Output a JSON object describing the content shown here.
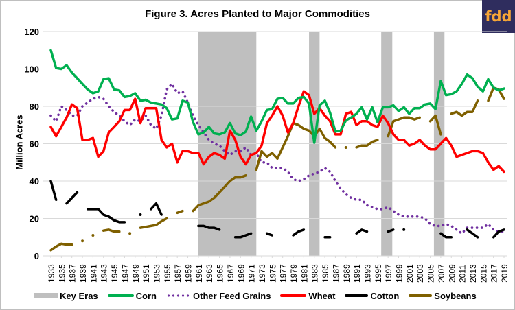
{
  "logo": {
    "text": "fdd"
  },
  "chart_data": {
    "type": "line",
    "title": "Figure 3. Acres Planted to Major Commodities",
    "xlabel": "",
    "ylabel": "Million Acres",
    "ylim": [
      0,
      120
    ],
    "yticks": [
      0,
      20,
      40,
      60,
      80,
      100,
      120
    ],
    "xlim": [
      1933,
      2019
    ],
    "xtick_labels": [
      "1933",
      "1935",
      "1937",
      "1939",
      "1941",
      "1943",
      "1945",
      "1947",
      "1949",
      "1951",
      "1953",
      "1955",
      "1957",
      "1959",
      "1961",
      "1963",
      "1965",
      "1967",
      "1969",
      "1971",
      "1973",
      "1975",
      "1977",
      "1979",
      "1981",
      "1983",
      "1985",
      "1987",
      "1989",
      "1991",
      "1993",
      "1995",
      "1997",
      "1999",
      "2001",
      "2003",
      "2005",
      "2007",
      "2009",
      "2011",
      "2013",
      "2015",
      "2017",
      "2019"
    ],
    "grid": "horizontal",
    "legend_position": "bottom",
    "key_eras": [
      {
        "start": 1961,
        "end": 1972
      },
      {
        "start": 1982,
        "end": 1984
      },
      {
        "start": 1995.7,
        "end": 1997.8
      },
      {
        "start": 2005.7,
        "end": 2007.7
      }
    ],
    "legend": [
      {
        "name": "Key Eras",
        "color": "#bfbfbf",
        "style": "band"
      },
      {
        "name": "Corn",
        "color": "#00b050",
        "style": "solid"
      },
      {
        "name": "Other Feed Grains",
        "color": "#7030a0",
        "style": "dotted"
      },
      {
        "name": "Wheat",
        "color": "#ff0000",
        "style": "solid"
      },
      {
        "name": "Cotton",
        "color": "#000000",
        "style": "dash"
      },
      {
        "name": "Soybeans",
        "color": "#7f6000",
        "style": "dashdot"
      }
    ],
    "x": [
      1933,
      1934,
      1935,
      1936,
      1937,
      1938,
      1939,
      1940,
      1941,
      1942,
      1943,
      1944,
      1945,
      1946,
      1947,
      1948,
      1949,
      1950,
      1951,
      1952,
      1953,
      1954,
      1955,
      1956,
      1957,
      1958,
      1959,
      1960,
      1961,
      1962,
      1963,
      1964,
      1965,
      1966,
      1967,
      1968,
      1969,
      1970,
      1971,
      1972,
      1973,
      1974,
      1975,
      1976,
      1977,
      1978,
      1979,
      1980,
      1981,
      1982,
      1983,
      1984,
      1985,
      1986,
      1987,
      1988,
      1989,
      1990,
      1991,
      1992,
      1993,
      1994,
      1995,
      1996,
      1997,
      1998,
      1999,
      2000,
      2001,
      2002,
      2003,
      2004,
      2005,
      2006,
      2007,
      2008,
      2009,
      2010,
      2011,
      2012,
      2013,
      2014,
      2015,
      2016,
      2017,
      2018,
      2019
    ],
    "series": [
      {
        "name": "Corn",
        "values": [
          110,
          100.5,
          100,
          102,
          98,
          95,
          92,
          89,
          87,
          88,
          94.5,
          95,
          89,
          88.5,
          85,
          85.5,
          87,
          83,
          83.5,
          82,
          81.5,
          81,
          79,
          73,
          73.5,
          83,
          82,
          71.5,
          65,
          66,
          69,
          65.5,
          65,
          66,
          71,
          65.5,
          64.5,
          66.5,
          74.5,
          67,
          72,
          78,
          78.5,
          84,
          84.5,
          81.5,
          81.5,
          84.5,
          85,
          81.5,
          60.5,
          80.5,
          83,
          76.5,
          66.5,
          67,
          72.5,
          74,
          76,
          79.5,
          73,
          79.5,
          71.5,
          79.5,
          79.5,
          80.5,
          77.5,
          79.5,
          76,
          79,
          79,
          81,
          81.5,
          78.5,
          93.5,
          86,
          86.5,
          88,
          92,
          97,
          95,
          90.5,
          88,
          94.5,
          90,
          88.5,
          89.5
        ]
      },
      {
        "name": "Other Feed Grains",
        "values": [
          75,
          72,
          80,
          78,
          75,
          75,
          80,
          82,
          84,
          85,
          84,
          80,
          77,
          75,
          72,
          70,
          73,
          72,
          75,
          70,
          68,
          75,
          89,
          92,
          87,
          88,
          82,
          75,
          70,
          66,
          62,
          60,
          59,
          56,
          54,
          56,
          56,
          58,
          54,
          55,
          50,
          50,
          47,
          47,
          47,
          45,
          41,
          40,
          41,
          43,
          44,
          45,
          47,
          45,
          40,
          36,
          33,
          31,
          30,
          30,
          27,
          26,
          25,
          25,
          26,
          24,
          22,
          21,
          21,
          21,
          21,
          20,
          17,
          16,
          16,
          17,
          16,
          14,
          12,
          15,
          15,
          15,
          15,
          17,
          14,
          13,
          13
        ]
      },
      {
        "name": "Wheat",
        "values": [
          69,
          64,
          69,
          74,
          81,
          79,
          62,
          62,
          63,
          53,
          56,
          66,
          69,
          72,
          78,
          78,
          84,
          71,
          79,
          79,
          79,
          62,
          58,
          60,
          50,
          56,
          56,
          55,
          55,
          49,
          53,
          55,
          54,
          52,
          67,
          62,
          53,
          49,
          54,
          55,
          59,
          71,
          75,
          80,
          75,
          66,
          71,
          80,
          88,
          86,
          76,
          79,
          75,
          72,
          65,
          65,
          76,
          77,
          70,
          72,
          72,
          70,
          69,
          75,
          71,
          65,
          62,
          62,
          59,
          60,
          62,
          59,
          57,
          57,
          60,
          63,
          59,
          53,
          54,
          55,
          56,
          56,
          55,
          50,
          46,
          48,
          45
        ]
      },
      {
        "name": "Cotton",
        "values": [
          40,
          30,
          null,
          28,
          31,
          34,
          null,
          25,
          25,
          25,
          22,
          21,
          19,
          18,
          18,
          null,
          null,
          22,
          null,
          25,
          28,
          22,
          null,
          null,
          null,
          null,
          null,
          null,
          16,
          16,
          15,
          15,
          14,
          null,
          null,
          10,
          10,
          11,
          12,
          null,
          null,
          12,
          11,
          null,
          null,
          null,
          11,
          13,
          14,
          null,
          null,
          null,
          10,
          10,
          null,
          null,
          null,
          null,
          12,
          14,
          13,
          null,
          null,
          null,
          13,
          14,
          null,
          14,
          null,
          null,
          null,
          null,
          null,
          null,
          12,
          10,
          10,
          null,
          null,
          14,
          12,
          10,
          null,
          null,
          10,
          13,
          14
        ]
      },
      {
        "name": "Soybeans",
        "values": [
          3,
          5,
          6.5,
          6,
          6,
          null,
          8,
          null,
          11,
          null,
          13.5,
          14,
          13,
          13,
          null,
          12,
          null,
          15,
          15.5,
          16,
          16.5,
          18.5,
          20,
          null,
          23,
          24,
          null,
          24,
          27,
          28,
          29,
          31,
          34,
          37,
          40,
          42,
          42,
          43,
          null,
          46,
          56,
          53,
          55,
          52,
          58,
          64,
          71,
          70,
          68,
          67,
          64,
          68,
          63,
          61,
          58,
          null,
          58,
          null,
          58,
          59,
          59,
          61,
          62,
          null,
          64,
          72,
          73,
          74,
          74,
          73,
          74,
          null,
          72,
          75,
          65,
          null,
          76,
          77,
          75,
          77,
          77,
          83,
          null,
          83,
          90,
          89,
          84
        ]
      }
    ],
    "notes": "Lines in the original are broken into segments with gaps (dash and dash-dot styles); values are approximate readings."
  }
}
